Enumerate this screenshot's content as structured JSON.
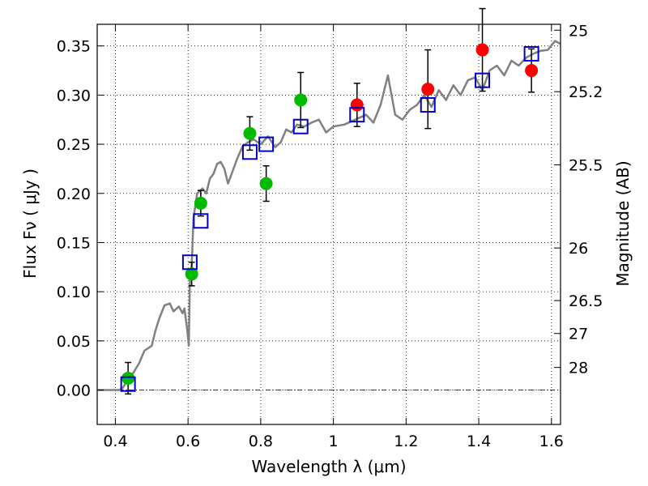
{
  "chart_data": {
    "type": "scatter",
    "xlabel": "Wavelength  λ (μm)",
    "ylabel": "Flux  Fν  ( μJy )",
    "y2label": "Magnitude (AB)",
    "xlim": [
      0.35,
      1.625
    ],
    "ylim": [
      -0.035,
      0.372
    ],
    "grid": true,
    "x_ticks": [
      0.4,
      0.6,
      0.8,
      1.0,
      1.2,
      1.4,
      1.6
    ],
    "x_tick_labels": [
      "0.4",
      "0.6",
      "0.8",
      "1",
      "1.2",
      "1.4",
      "1.6"
    ],
    "y_ticks": [
      0.0,
      0.05,
      0.1,
      0.15,
      0.2,
      0.25,
      0.3,
      0.35
    ],
    "y_tick_labels": [
      "0.00",
      "0.05",
      "0.10",
      "0.15",
      "0.20",
      "0.25",
      "0.30",
      "0.35"
    ],
    "y2_ticks": [
      {
        "label": "25",
        "flux": 0.366
      },
      {
        "label": "25.2",
        "flux": 0.3035
      },
      {
        "label": "25.5",
        "flux": 0.229
      },
      {
        "label": "26",
        "flux": 0.1445
      },
      {
        "label": "26.5",
        "flux": 0.091
      },
      {
        "label": "27",
        "flux": 0.0575
      },
      {
        "label": "28",
        "flux": 0.023
      }
    ],
    "colors": {
      "model": "#808080",
      "green": "#00bb00",
      "red": "#ff0000",
      "square": "#0000cc",
      "errorbar": "#000000"
    },
    "series": [
      {
        "marker": "line",
        "x": [
          0.35,
          0.41,
          0.42,
          0.43,
          0.45,
          0.465,
          0.48,
          0.5,
          0.51,
          0.52,
          0.535,
          0.55,
          0.56,
          0.575,
          0.585,
          0.59,
          0.598,
          0.602,
          0.605,
          0.61,
          0.615,
          0.625,
          0.64,
          0.65,
          0.66,
          0.67,
          0.68,
          0.69,
          0.7,
          0.71,
          0.72,
          0.735,
          0.75,
          0.765,
          0.78,
          0.8,
          0.82,
          0.84,
          0.855,
          0.87,
          0.885,
          0.9,
          0.92,
          0.94,
          0.96,
          0.98,
          1.0,
          1.03,
          1.06,
          1.09,
          1.11,
          1.13,
          1.15,
          1.17,
          1.19,
          1.21,
          1.23,
          1.25,
          1.27,
          1.29,
          1.31,
          1.33,
          1.35,
          1.37,
          1.39,
          1.41,
          1.43,
          1.45,
          1.47,
          1.49,
          1.51,
          1.53,
          1.55,
          1.57,
          1.59,
          1.61,
          1.625
        ],
        "y": [
          0.0,
          0.0,
          0.002,
          0.008,
          0.018,
          0.027,
          0.04,
          0.045,
          0.06,
          0.072,
          0.086,
          0.088,
          0.08,
          0.085,
          0.078,
          0.083,
          0.06,
          0.045,
          0.11,
          0.125,
          0.175,
          0.2,
          0.205,
          0.2,
          0.215,
          0.22,
          0.23,
          0.232,
          0.225,
          0.21,
          0.22,
          0.235,
          0.248,
          0.252,
          0.255,
          0.25,
          0.258,
          0.247,
          0.252,
          0.265,
          0.262,
          0.27,
          0.268,
          0.272,
          0.275,
          0.262,
          0.268,
          0.27,
          0.275,
          0.28,
          0.272,
          0.29,
          0.32,
          0.28,
          0.275,
          0.285,
          0.29,
          0.3,
          0.288,
          0.305,
          0.295,
          0.31,
          0.3,
          0.315,
          0.318,
          0.305,
          0.325,
          0.33,
          0.32,
          0.335,
          0.33,
          0.338,
          0.342,
          0.345,
          0.346,
          0.355,
          0.352
        ]
      },
      {
        "marker": "circle",
        "color": "green",
        "x": [
          0.435,
          0.61,
          0.635,
          0.77,
          0.815,
          0.91
        ],
        "y": [
          0.012,
          0.118,
          0.19,
          0.261,
          0.21,
          0.295
        ],
        "err": [
          0.016,
          0.012,
          0.013,
          0.017,
          0.018,
          0.028
        ]
      },
      {
        "marker": "circle",
        "color": "red",
        "x": [
          1.065,
          1.26,
          1.41,
          1.545
        ],
        "y": [
          0.29,
          0.306,
          0.346,
          0.325
        ],
        "err": [
          0.022,
          0.04,
          0.042,
          0.022
        ]
      },
      {
        "marker": "square",
        "color": "square",
        "x": [
          0.435,
          0.605,
          0.635,
          0.77,
          0.815,
          0.91,
          1.065,
          1.26,
          1.41,
          1.545
        ],
        "y": [
          0.006,
          0.13,
          0.172,
          0.242,
          0.25,
          0.268,
          0.28,
          0.29,
          0.315,
          0.342
        ]
      }
    ]
  }
}
